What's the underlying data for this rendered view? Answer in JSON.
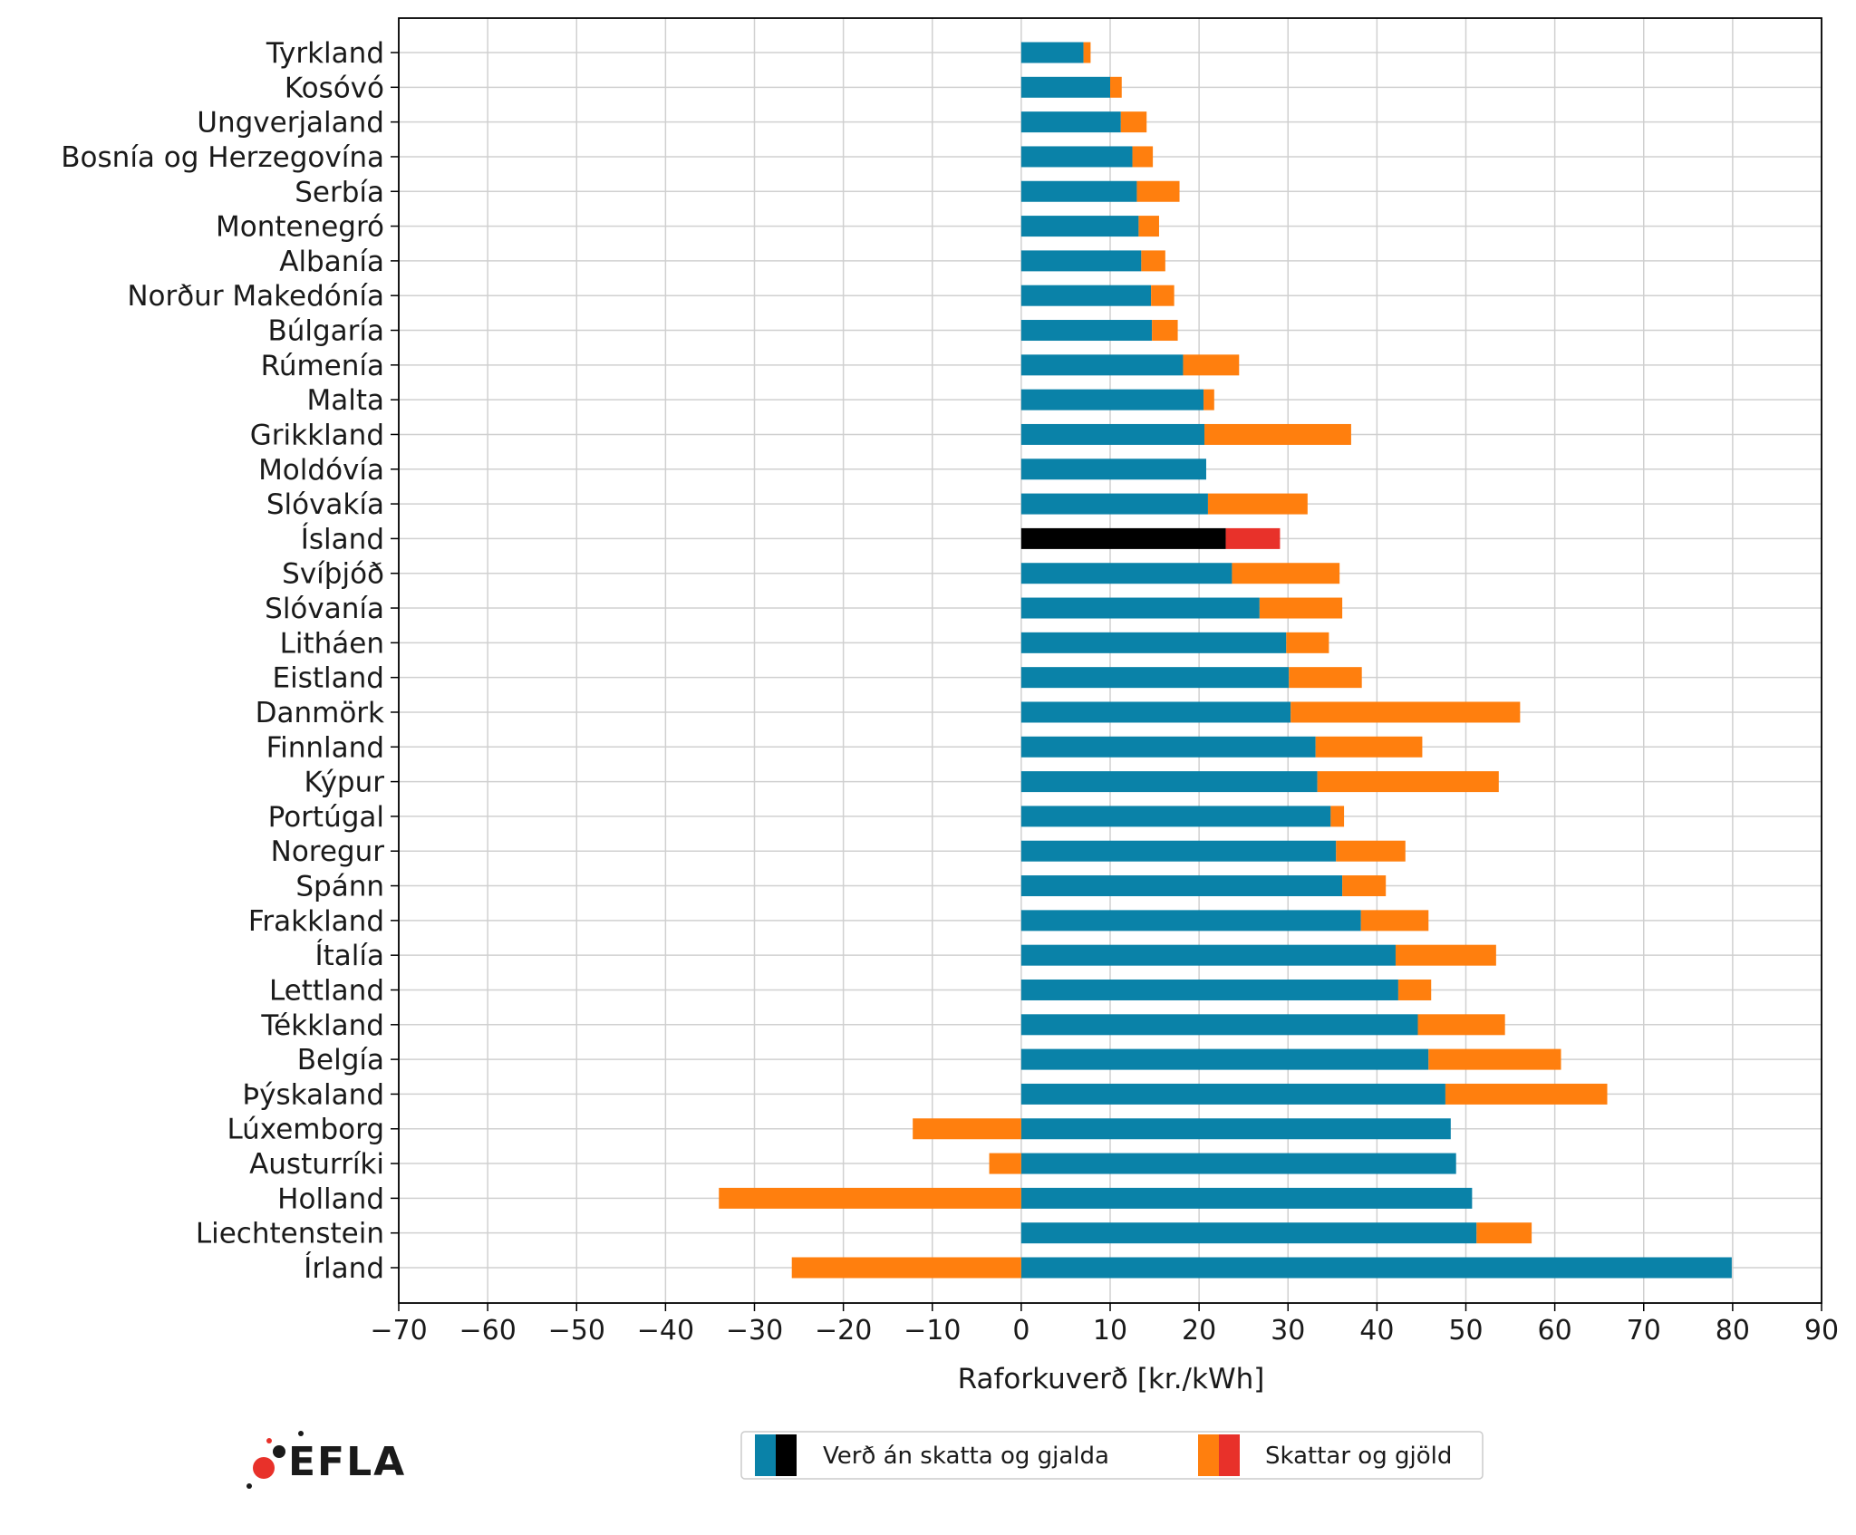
{
  "chart_data": {
    "type": "bar",
    "orientation": "horizontal",
    "stacked": true,
    "xlabel": "Raforkuverð [kr./kWh]",
    "ylabel": "",
    "xlim": [
      -70,
      90
    ],
    "xticks": [
      -70,
      -60,
      -50,
      -40,
      -30,
      -20,
      -10,
      0,
      10,
      20,
      30,
      40,
      50,
      60,
      70,
      80,
      90
    ],
    "grid": true,
    "legend_position": "bottom-center",
    "categories": [
      "Tyrkland",
      "Kosóvó",
      "Ungverjaland",
      "Bosnía og Herzegovína",
      "Serbía",
      "Montenegró",
      "Albanía",
      "Norður Makedónía",
      "Búlgaría",
      "Rúmenía",
      "Malta",
      "Grikkland",
      "Moldóvía",
      "Slóvakía",
      "Ísland",
      "Svíþjóð",
      "Slóvanía",
      "Litháen",
      "Eistland",
      "Danmörk",
      "Finnland",
      "Kýpur",
      "Portúgal",
      "Noregur",
      "Spánn",
      "Frakkland",
      "Ítalía",
      "Lettland",
      "Tékkland",
      "Belgía",
      "Þýskaland",
      "Lúxemborg",
      "Austurríki",
      "Holland",
      "Liechtenstein",
      "Írland"
    ],
    "series": [
      {
        "name": "Verð án skatta og gjalda",
        "color": "#0a82a8",
        "highlight_color": "#000000",
        "values": [
          7,
          10,
          11.2,
          12.5,
          13,
          13.2,
          13.5,
          14.6,
          14.7,
          18.2,
          20.5,
          20.6,
          20.8,
          21,
          23,
          23.7,
          26.8,
          29.8,
          30.1,
          30.3,
          33.1,
          33.3,
          34.8,
          35.4,
          36.1,
          38.2,
          42.1,
          42.4,
          44.6,
          45.8,
          47.7,
          48.3,
          48.9,
          50.7,
          51.2,
          79.9
        ]
      },
      {
        "name": "Skattar og gjöld",
        "color": "#ff7f0e",
        "highlight_color": "#e8312a",
        "values": [
          0.8,
          1.3,
          2.9,
          2.3,
          4.8,
          2.3,
          2.7,
          2.6,
          2.9,
          6.3,
          1.2,
          16.5,
          0,
          11.2,
          6.1,
          12.1,
          9.3,
          4.8,
          8.2,
          25.8,
          12,
          20.4,
          1.5,
          7.8,
          4.9,
          7.6,
          11.3,
          3.7,
          9.8,
          14.9,
          18.2,
          -12.2,
          -3.6,
          -34,
          6.2,
          -25.8
        ]
      }
    ],
    "highlight_category": "Ísland",
    "colors": {
      "grid": "#d0d0d0",
      "axis": "#000000"
    }
  },
  "logo": {
    "text": "EFLA",
    "dot_color": "#e8312a"
  }
}
